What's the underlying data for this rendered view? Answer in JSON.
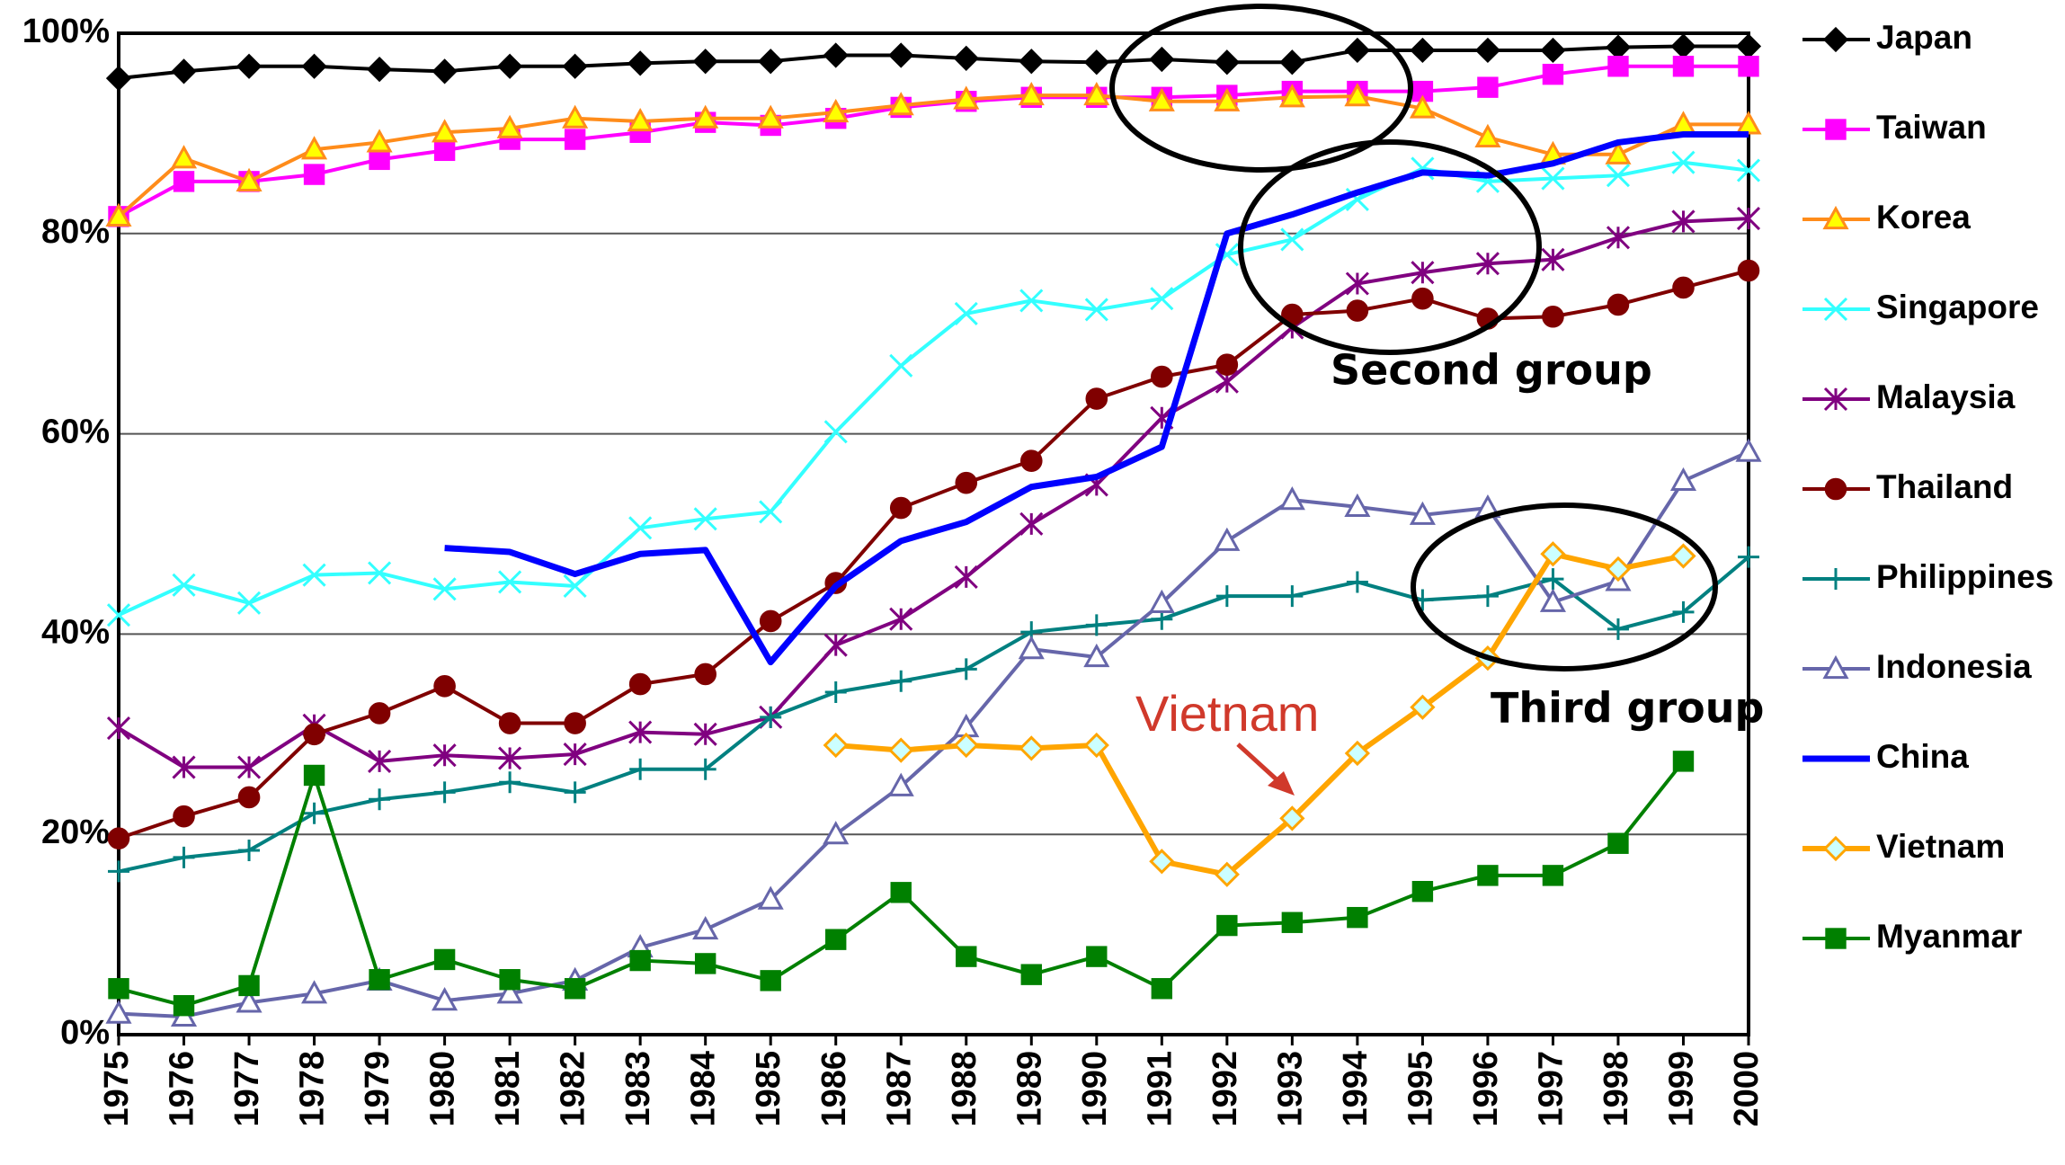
{
  "chart_data": {
    "type": "line",
    "categories": [
      "1975",
      "1976",
      "1977",
      "1978",
      "1979",
      "1980",
      "1981",
      "1982",
      "1983",
      "1984",
      "1985",
      "1986",
      "1987",
      "1988",
      "1989",
      "1990",
      "1991",
      "1992",
      "1993",
      "1994",
      "1995",
      "1996",
      "1997",
      "1998",
      "1999",
      "2000"
    ],
    "ylim": [
      0,
      100
    ],
    "yticks": [
      {
        "value": 0,
        "label": "0%"
      },
      {
        "value": 20,
        "label": "20%"
      },
      {
        "value": 40,
        "label": "40%"
      },
      {
        "value": 60,
        "label": "60%"
      },
      {
        "value": 80,
        "label": "80%"
      },
      {
        "value": 100,
        "label": "100%"
      }
    ],
    "grid": true,
    "legend": "right",
    "annotations": [
      "Second group",
      "Third group",
      "Vietnam"
    ],
    "series": [
      {
        "name": "Japan",
        "color": "#000000",
        "marker": "diamond",
        "marker_fill": "#000000",
        "values": [
          95.5,
          96.2,
          96.7,
          96.7,
          96.4,
          96.2,
          96.7,
          96.7,
          97,
          97.2,
          97.2,
          97.8,
          97.8,
          97.5,
          97.2,
          97.1,
          97.4,
          97.1,
          97.1,
          98.3,
          98.3,
          98.3,
          98.3,
          98.6,
          98.7,
          98.7
        ]
      },
      {
        "name": "Taiwan",
        "color": "#ff00ff",
        "marker": "square",
        "marker_fill": "#ff00ff",
        "values": [
          81.7,
          85.2,
          85.2,
          85.9,
          87.4,
          88.3,
          89.4,
          89.4,
          90.1,
          91.1,
          90.8,
          91.5,
          92.6,
          93.2,
          93.6,
          93.6,
          93.6,
          93.8,
          94.2,
          94.2,
          94.2,
          94.6,
          95.9,
          96.7,
          96.7,
          96.7
        ]
      },
      {
        "name": "Korea",
        "color": "#ff8c1a",
        "marker": "triangle",
        "marker_fill": "#ffff00",
        "values": [
          81.7,
          87.5,
          85.2,
          88.4,
          89.1,
          90.1,
          90.5,
          91.5,
          91.2,
          91.5,
          91.5,
          92.1,
          92.8,
          93.4,
          93.8,
          93.8,
          93.2,
          93.2,
          93.6,
          93.7,
          92.5,
          89.6,
          87.9,
          87.9,
          90.9,
          90.9
        ]
      },
      {
        "name": "Singapore",
        "color": "#33ffff",
        "marker": "x",
        "marker_fill": "none",
        "values": [
          41.9,
          44.9,
          43.1,
          45.9,
          46.1,
          44.5,
          45.2,
          44.8,
          50.6,
          51.5,
          52.2,
          60.2,
          66.8,
          72,
          73.3,
          72.4,
          73.5,
          77.9,
          79.4,
          83.4,
          86.5,
          85.2,
          85.5,
          85.8,
          87.1,
          86.3
        ]
      },
      {
        "name": "Malaysia",
        "color": "#800080",
        "marker": "asterisk",
        "marker_fill": "none",
        "values": [
          30.6,
          26.7,
          26.7,
          30.9,
          27.3,
          27.9,
          27.6,
          28,
          30.2,
          30,
          31.7,
          38.9,
          41.5,
          45.7,
          51,
          54.9,
          61.6,
          65.2,
          70.6,
          75,
          76.1,
          77,
          77.4,
          79.6,
          81.2,
          81.5
        ]
      },
      {
        "name": "Thailand",
        "color": "#800000",
        "marker": "circle",
        "marker_fill": "#800000",
        "values": [
          19.6,
          21.8,
          23.7,
          30,
          32.1,
          34.8,
          31.1,
          31.1,
          35,
          36,
          41.3,
          45.1,
          52.6,
          55.1,
          57.3,
          63.5,
          65.7,
          66.9,
          71.9,
          72.3,
          73.5,
          71.5,
          71.7,
          72.9,
          74.6,
          76.3
        ]
      },
      {
        "name": "Philippines",
        "color": "#008080",
        "marker": "plus",
        "marker_fill": "none",
        "values": [
          16.3,
          17.7,
          18.4,
          22.1,
          23.5,
          24.2,
          25.2,
          24.2,
          26.5,
          26.5,
          31.7,
          34.2,
          35.3,
          36.5,
          40.2,
          40.9,
          41.5,
          43.8,
          43.8,
          45.2,
          43.4,
          43.8,
          45.5,
          40.5,
          42.2,
          47.7
        ]
      },
      {
        "name": "Indonesia",
        "color": "#6666aa",
        "marker": "triangle",
        "marker_fill": "#ffffff",
        "values": [
          2.1,
          1.8,
          3.2,
          4.1,
          5.4,
          3.4,
          4.1,
          5.4,
          8.7,
          10.5,
          13.5,
          20,
          24.8,
          30.7,
          38.5,
          37.7,
          43.1,
          49.3,
          53.4,
          52.7,
          51.9,
          52.6,
          43.2,
          45.3,
          55.3,
          58.2
        ]
      },
      {
        "name": "China",
        "color": "#0000ff",
        "marker": "none",
        "marker_fill": "none",
        "values": [
          null,
          null,
          null,
          null,
          null,
          48.6,
          48.2,
          46,
          48,
          48.4,
          37.2,
          44.8,
          49.3,
          51.2,
          54.7,
          55.7,
          58.7,
          80,
          81.9,
          84.1,
          86.1,
          85.8,
          87,
          89.1,
          89.9,
          89.9
        ]
      },
      {
        "name": "Vietnam",
        "color": "#ffa500",
        "marker": "diamond",
        "marker_fill": "#ccffff",
        "values": [
          null,
          null,
          null,
          null,
          null,
          null,
          null,
          null,
          null,
          null,
          null,
          28.9,
          28.4,
          28.9,
          28.6,
          28.9,
          17.3,
          16,
          21.6,
          28.1,
          32.7,
          37.6,
          48,
          46.5,
          47.8,
          null
        ]
      },
      {
        "name": "Myanmar",
        "color": "#008000",
        "marker": "square",
        "marker_fill": "#008000",
        "values": [
          4.6,
          2.9,
          4.9,
          25.9,
          5.5,
          7.5,
          5.5,
          4.6,
          7.4,
          7.1,
          5.4,
          9.5,
          14.2,
          7.8,
          6,
          7.8,
          4.6,
          10.9,
          11.2,
          11.7,
          14.3,
          15.9,
          15.9,
          19.1,
          27.3,
          null
        ]
      }
    ]
  }
}
